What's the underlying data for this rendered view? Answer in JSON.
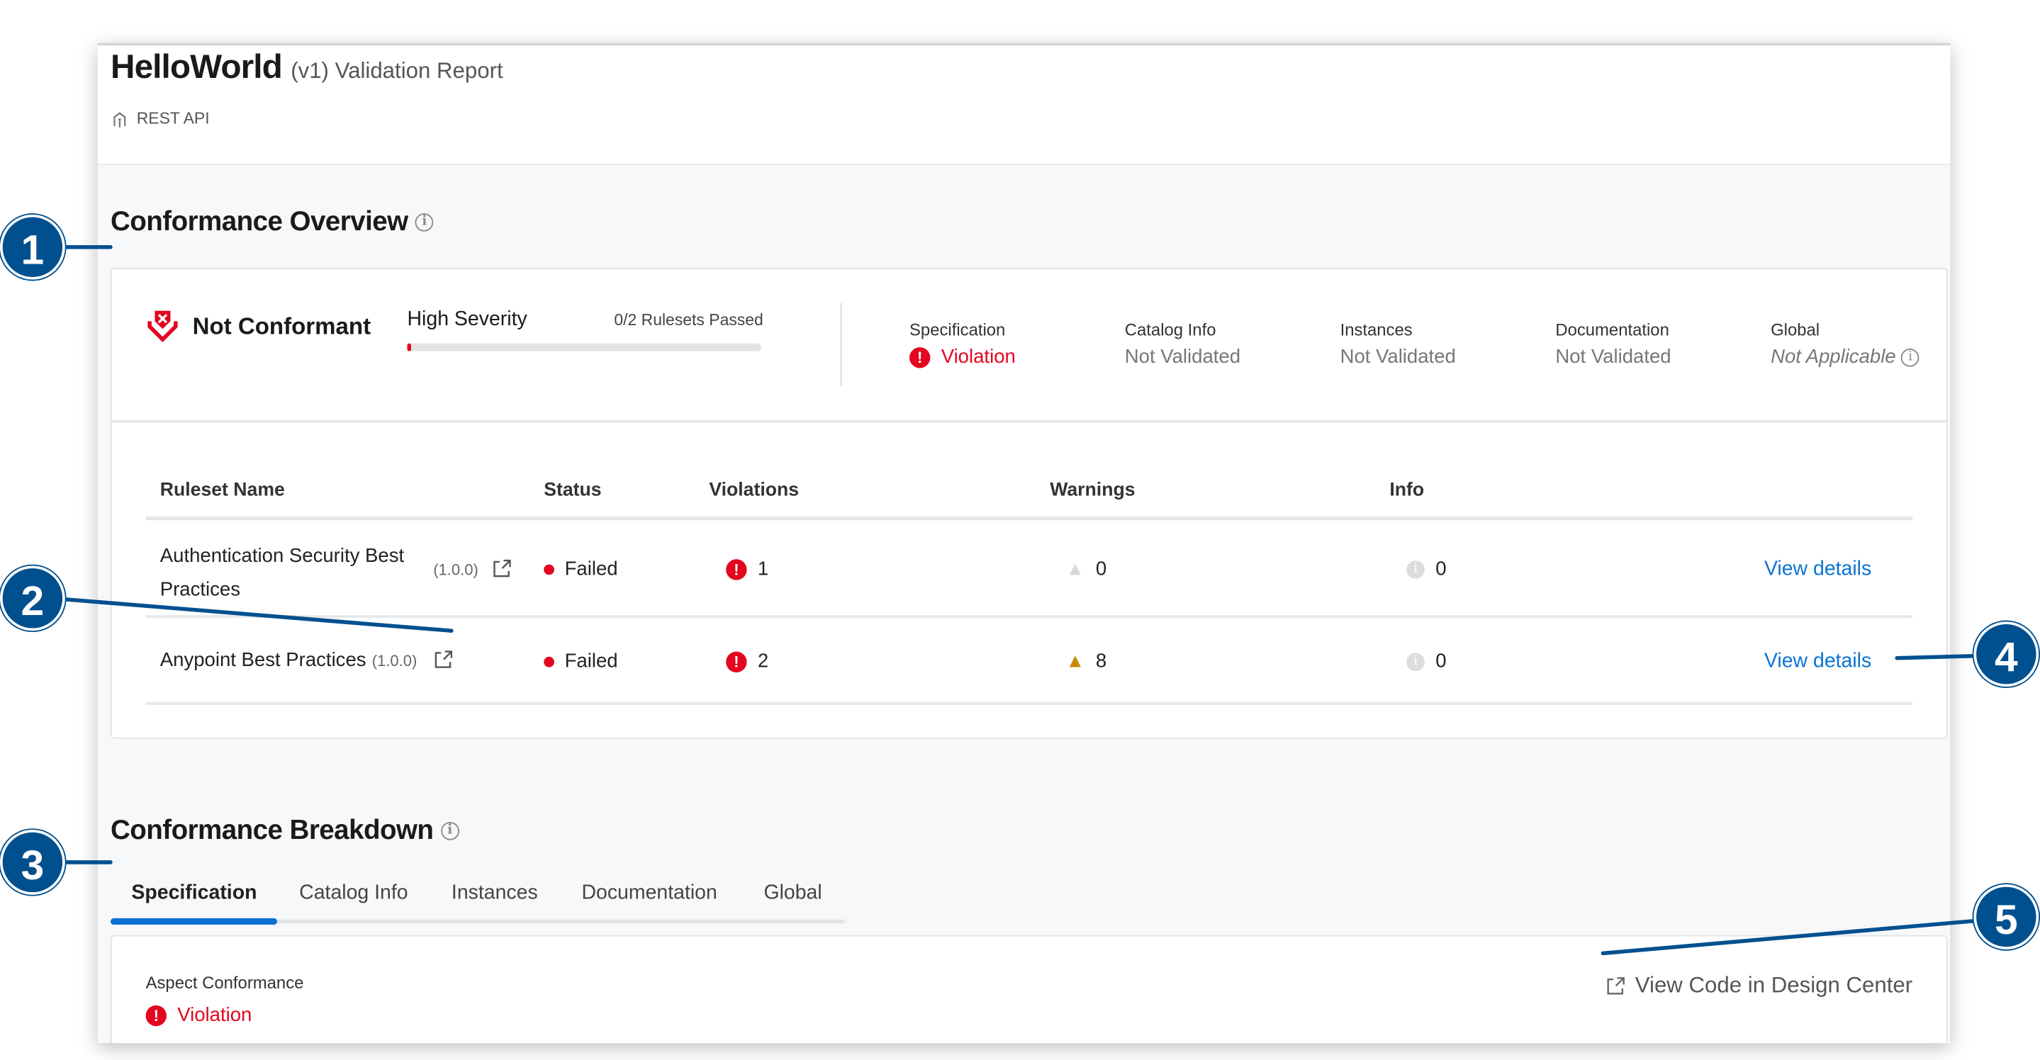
{
  "header": {
    "app_name": "HelloWorld",
    "subtitle": "(v1) Validation Report",
    "api_type": "REST API",
    "api_icon": "api-icon"
  },
  "overview": {
    "title": "Conformance Overview",
    "status": "Not Conformant",
    "severity": "High Severity",
    "rulesets_passed": "0/2 Rulesets Passed",
    "progress_fraction": 0,
    "aspects": [
      {
        "label": "Specification",
        "value": "Violation",
        "state": "violation"
      },
      {
        "label": "Catalog Info",
        "value": "Not Validated",
        "state": "none"
      },
      {
        "label": "Instances",
        "value": "Not Validated",
        "state": "none"
      },
      {
        "label": "Documentation",
        "value": "Not Validated",
        "state": "none"
      },
      {
        "label": "Global",
        "value": "Not Applicable",
        "state": "na"
      }
    ]
  },
  "table": {
    "columns": [
      "Ruleset Name",
      "Status",
      "Violations",
      "Warnings",
      "Info"
    ],
    "rows": [
      {
        "name_line1": "Authentication Security Best",
        "name_line2": "Practices",
        "version": "(1.0.0)",
        "status": "Failed",
        "violations": "1",
        "warnings": "0",
        "info": "0",
        "action": "View details"
      },
      {
        "name": "Anypoint Best Practices",
        "version": "(1.0.0)",
        "status": "Failed",
        "violations": "2",
        "warnings": "8",
        "info": "0",
        "action": "View details"
      }
    ]
  },
  "breakdown": {
    "title": "Conformance Breakdown",
    "tabs": [
      "Specification",
      "Catalog Info",
      "Instances",
      "Documentation",
      "Global"
    ],
    "active_tab": "Specification",
    "aspect_label": "Aspect Conformance",
    "aspect_value": "Violation",
    "design_center_link": "View Code in Design Center"
  },
  "callouts": [
    "1",
    "2",
    "3",
    "4",
    "5"
  ],
  "colors": {
    "error": "#e4051f",
    "warning": "#c98a00",
    "link": "#0a72d3",
    "callout": "#00508f",
    "tab_active": "#0a72d3"
  }
}
